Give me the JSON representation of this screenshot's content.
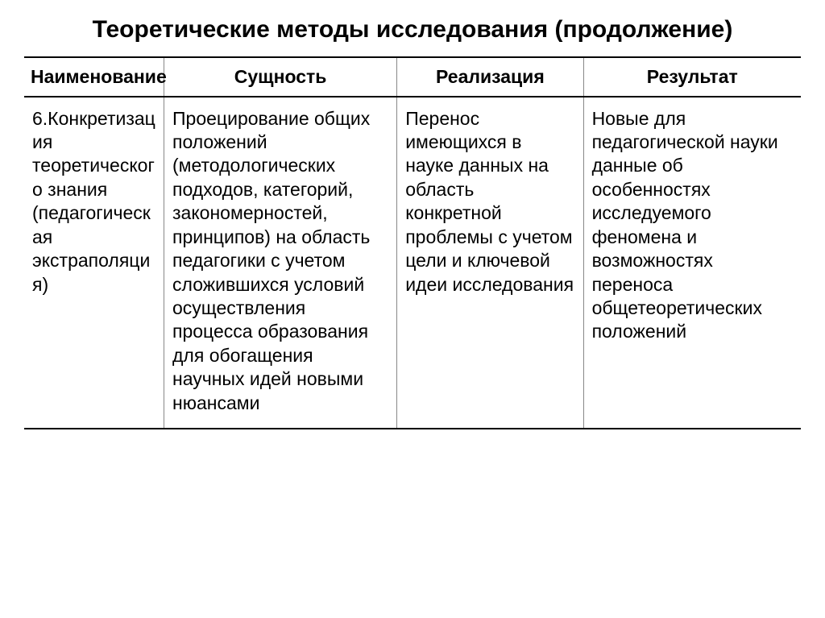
{
  "title": "Теоретические методы исследования (продолжение)",
  "table": {
    "headers": {
      "name": "Наименование",
      "essence": "Сущность",
      "implementation": "Реализация",
      "result": "Результат"
    },
    "row": {
      "name": "6.Конкретизация теоретического знания (педагогическая экстраполяция)",
      "essence": "Проецирование общих положений (методологических подходов, категорий, закономерностей, принципов) на область педагогики с учетом сложившихся условий осуществления процесса образования для обогащения научных идей новыми нюансами",
      "implementation": "Перенос имеющихся в науке данных на область конкретной проблемы с учетом цели и ключевой идеи исследования",
      "result": "Новые для педагогической науки данные об особенностях исследуемого феномена и возможностях переноса общетеоретических положений"
    }
  },
  "styles": {
    "title_fontsize": 30,
    "header_fontsize": 23,
    "cell_fontsize": 23,
    "border_color": "#000000",
    "col_separator_color": "#888888",
    "background_color": "#ffffff",
    "text_color": "#000000",
    "column_widths": [
      "18%",
      "30%",
      "24%",
      "28%"
    ]
  }
}
